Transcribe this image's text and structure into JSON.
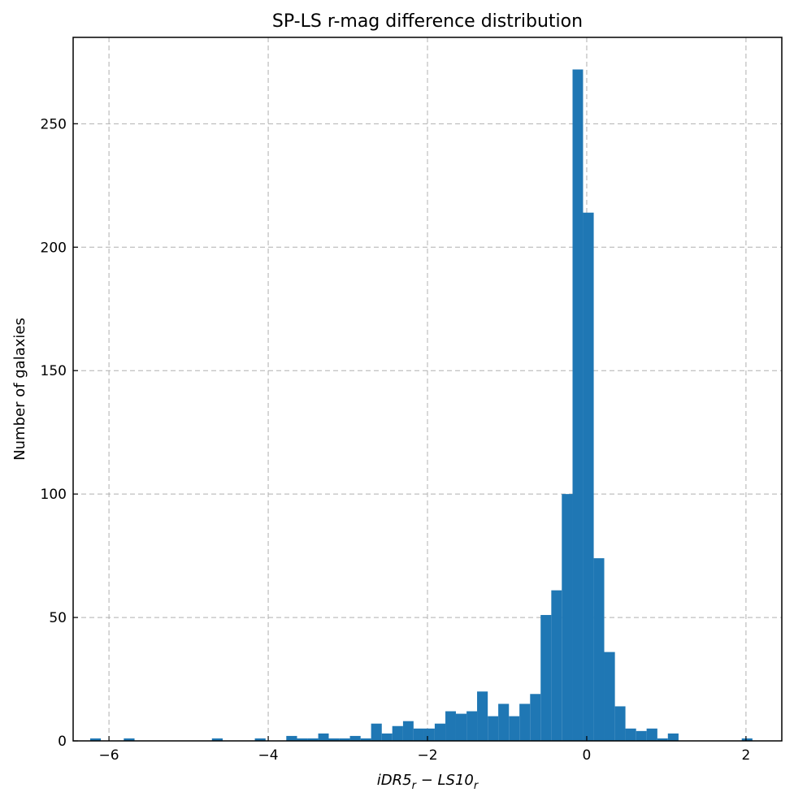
{
  "chart_data": {
    "type": "bar",
    "title": "SP-LS r-mag difference distribution",
    "xlabel": "iDR5",
    "xlabel_sub": "r",
    "xlabel_mid": " − LS10",
    "xlabel_sub2": "r",
    "ylabel": "Number of galaxies",
    "xlim": [
      -6.45,
      2.45
    ],
    "ylim": [
      0,
      285
    ],
    "xticks": [
      -6,
      -4,
      -2,
      0,
      2
    ],
    "xtick_labels": [
      "−6",
      "−4",
      "−2",
      "0",
      "2"
    ],
    "yticks": [
      0,
      50,
      100,
      150,
      200,
      250
    ],
    "ytick_labels": [
      "0",
      "50",
      "100",
      "150",
      "200",
      "250"
    ],
    "grid": true,
    "bar_color": "#1f77b4",
    "bins": [
      {
        "x0": -6.236,
        "x1": -6.102,
        "count": 1
      },
      {
        "x0": -5.814,
        "x1": -5.679,
        "count": 1
      },
      {
        "x0": -4.707,
        "x1": -4.572,
        "count": 1
      },
      {
        "x0": -4.168,
        "x1": -4.033,
        "count": 1
      },
      {
        "x0": -3.773,
        "x1": -3.638,
        "count": 2
      },
      {
        "x0": -3.638,
        "x1": -3.506,
        "count": 1
      },
      {
        "x0": -3.506,
        "x1": -3.372,
        "count": 1
      },
      {
        "x0": -3.372,
        "x1": -3.24,
        "count": 3
      },
      {
        "x0": -3.24,
        "x1": -3.106,
        "count": 1
      },
      {
        "x0": -3.106,
        "x1": -2.974,
        "count": 1
      },
      {
        "x0": -2.974,
        "x1": -2.84,
        "count": 2
      },
      {
        "x0": -2.84,
        "x1": -2.708,
        "count": 1
      },
      {
        "x0": -2.708,
        "x1": -2.574,
        "count": 7
      },
      {
        "x0": -2.574,
        "x1": -2.442,
        "count": 3
      },
      {
        "x0": -2.442,
        "x1": -2.307,
        "count": 6
      },
      {
        "x0": -2.307,
        "x1": -2.175,
        "count": 8
      },
      {
        "x0": -2.175,
        "x1": -2.041,
        "count": 5
      },
      {
        "x0": -2.041,
        "x1": -1.909,
        "count": 5
      },
      {
        "x0": -1.909,
        "x1": -1.775,
        "count": 7
      },
      {
        "x0": -1.775,
        "x1": -1.643,
        "count": 12
      },
      {
        "x0": -1.643,
        "x1": -1.509,
        "count": 11
      },
      {
        "x0": -1.509,
        "x1": -1.377,
        "count": 12
      },
      {
        "x0": -1.377,
        "x1": -1.243,
        "count": 20
      },
      {
        "x0": -1.243,
        "x1": -1.111,
        "count": 10
      },
      {
        "x0": -1.111,
        "x1": -0.977,
        "count": 15
      },
      {
        "x0": -0.977,
        "x1": -0.845,
        "count": 10
      },
      {
        "x0": -0.845,
        "x1": -0.711,
        "count": 15
      },
      {
        "x0": -0.711,
        "x1": -0.579,
        "count": 19
      },
      {
        "x0": -0.579,
        "x1": -0.445,
        "count": 51
      },
      {
        "x0": -0.445,
        "x1": -0.313,
        "count": 61
      },
      {
        "x0": -0.313,
        "x1": -0.178,
        "count": 100
      },
      {
        "x0": -0.178,
        "x1": -0.046,
        "count": 272
      },
      {
        "x0": -0.046,
        "x1": 0.088,
        "count": 214
      },
      {
        "x0": 0.088,
        "x1": 0.22,
        "count": 74
      },
      {
        "x0": 0.22,
        "x1": 0.354,
        "count": 36
      },
      {
        "x0": 0.354,
        "x1": 0.486,
        "count": 14
      },
      {
        "x0": 0.486,
        "x1": 0.62,
        "count": 5
      },
      {
        "x0": 0.62,
        "x1": 0.752,
        "count": 4
      },
      {
        "x0": 0.752,
        "x1": 0.887,
        "count": 5
      },
      {
        "x0": 0.887,
        "x1": 1.019,
        "count": 1
      },
      {
        "x0": 1.019,
        "x1": 1.153,
        "count": 3
      },
      {
        "x0": 1.947,
        "x1": 2.081,
        "count": 1
      }
    ]
  }
}
